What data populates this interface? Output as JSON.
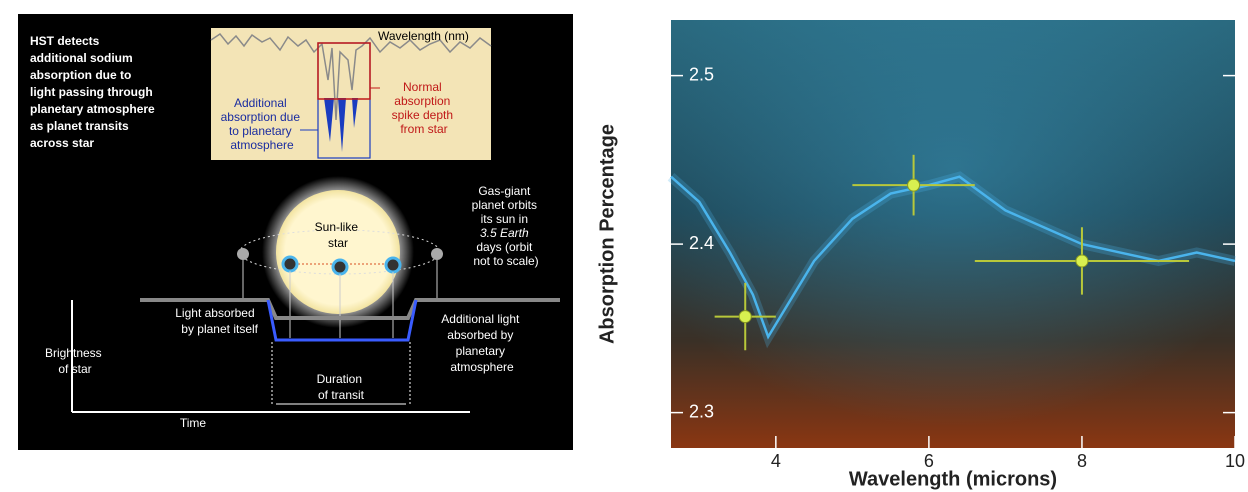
{
  "diagram": {
    "heading": [
      "HST detects",
      "additional sodium",
      "absorption due to",
      "light passing through",
      "planetary atmosphere",
      "as planet transits",
      "across star"
    ],
    "inset_axis": "Wavelength (nm)",
    "inset_blue": [
      "Additional",
      "absorption due",
      "to planetary",
      "atmosphere"
    ],
    "inset_red": [
      "Normal",
      "absorption",
      "spike depth",
      "from star"
    ],
    "star": [
      "Sun-like",
      "star"
    ],
    "orbit": [
      "Gas-giant",
      "planet orbits",
      "its sun in",
      "3.5 Earth",
      "days (orbit",
      "not to scale)"
    ],
    "planet_absorb": [
      "Light absorbed",
      "by planet itself"
    ],
    "atmos_absorb": [
      "Additional light",
      "absorbed by",
      "planetary",
      "atmosphere"
    ],
    "brightness": [
      "Brightness",
      "of star"
    ],
    "duration": [
      "Duration",
      "of transit"
    ],
    "time": "Time"
  },
  "chart_data": {
    "type": "scatter",
    "x_label": "Wavelength (microns)",
    "y_label": "Absorption Percentage",
    "xlim": [
      2.63,
      10
    ],
    "ylim": [
      2.279,
      2.533
    ],
    "xticks": [
      4,
      6,
      8,
      10
    ],
    "yticks": [
      2.3,
      2.4,
      2.5
    ],
    "series": [
      {
        "style": "line",
        "color": "#4ab4ec",
        "x": [
          2.63,
          3.0,
          3.4,
          3.7,
          3.9,
          4.1,
          4.5,
          5.0,
          5.5,
          6.0,
          6.4,
          7.0,
          7.5,
          8.0,
          8.5,
          9.0,
          9.5,
          10.0
        ],
        "values": [
          2.44,
          2.425,
          2.395,
          2.37,
          2.345,
          2.36,
          2.39,
          2.415,
          2.43,
          2.435,
          2.44,
          2.42,
          2.41,
          2.4,
          2.395,
          2.39,
          2.395,
          2.39
        ]
      },
      {
        "style": "points",
        "color": "#d8f050",
        "x": [
          3.6,
          5.8,
          8.0
        ],
        "values": [
          2.357,
          2.435,
          2.39
        ],
        "xerr": [
          0.4,
          0.8,
          1.4
        ],
        "yerr": [
          0.02,
          0.018,
          0.02
        ]
      }
    ]
  }
}
